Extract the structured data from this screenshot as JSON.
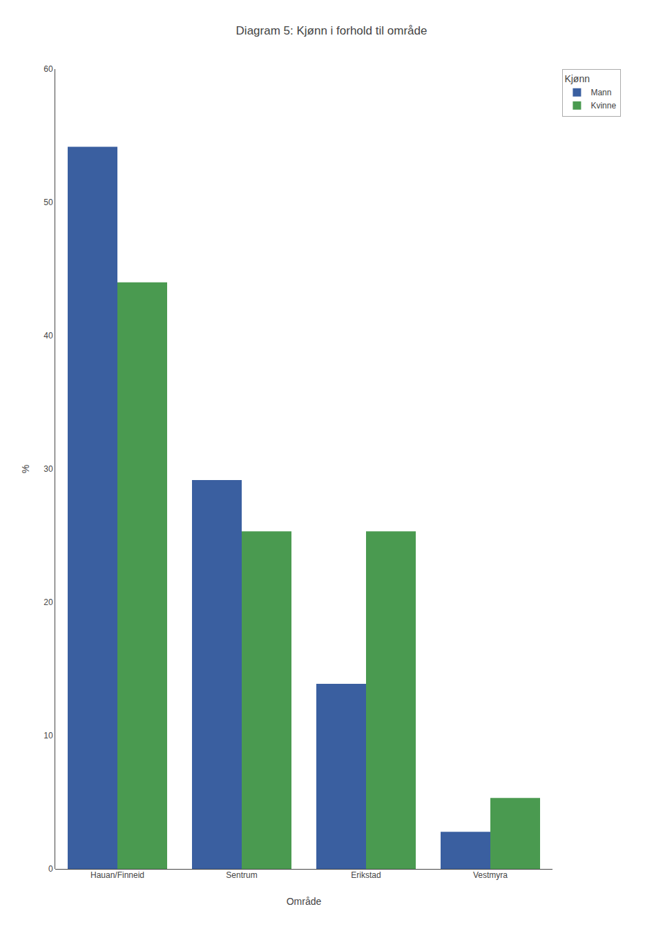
{
  "chart_data": {
    "type": "bar",
    "title": "Diagram 5: Kjønn i forhold til område",
    "xlabel": "Område",
    "ylabel": "%",
    "categories": [
      "Hauan/Finneid",
      "Sentrum",
      "Erikstad",
      "Vestmyra"
    ],
    "series": [
      {
        "name": "Mann",
        "color": "#3a5fa0",
        "values": [
          54.17,
          29.17,
          13.89,
          2.78
        ]
      },
      {
        "name": "Kvinne",
        "color": "#4a9a50",
        "values": [
          44.0,
          25.33,
          25.33,
          5.33
        ]
      }
    ],
    "ylim": [
      0,
      60
    ],
    "yticks": [
      0,
      10,
      20,
      30,
      40,
      50,
      60
    ],
    "legend_title": "Kjønn",
    "legend": "right",
    "grid": false
  }
}
